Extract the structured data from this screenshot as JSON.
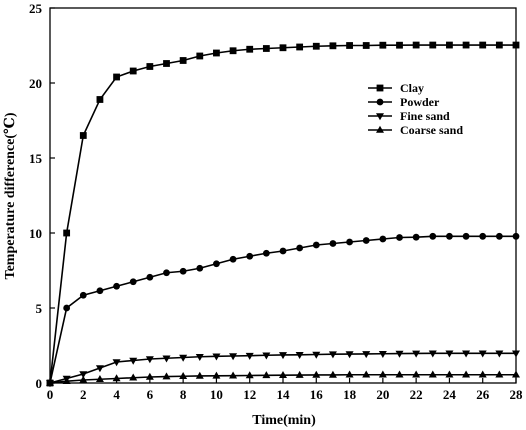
{
  "chart_data": {
    "type": "line",
    "title": "",
    "xlabel": "Time(min)",
    "ylabel": "Temperature difference(℃)",
    "xlim": [
      0,
      28
    ],
    "ylim": [
      0,
      25
    ],
    "xticks": [
      0,
      2,
      4,
      6,
      8,
      10,
      12,
      14,
      16,
      18,
      20,
      22,
      24,
      26,
      28
    ],
    "yticks": [
      0,
      5,
      10,
      15,
      20,
      25
    ],
    "grid": false,
    "legend_position": "top-right",
    "series": [
      {
        "name": "Clay",
        "marker": "square",
        "x": [
          0,
          1,
          2,
          3,
          4,
          5,
          6,
          7,
          8,
          9,
          10,
          11,
          12,
          13,
          14,
          15,
          16,
          17,
          18,
          19,
          20,
          21,
          22,
          23,
          24,
          25,
          26,
          27,
          28
        ],
        "values": [
          0,
          10.0,
          16.5,
          18.9,
          20.4,
          20.8,
          21.1,
          21.3,
          21.5,
          21.8,
          22.0,
          22.15,
          22.25,
          22.3,
          22.35,
          22.4,
          22.45,
          22.48,
          22.5,
          22.5,
          22.52,
          22.52,
          22.53,
          22.53,
          22.53,
          22.53,
          22.53,
          22.53,
          22.53
        ]
      },
      {
        "name": "Powder",
        "marker": "circle",
        "x": [
          0,
          1,
          2,
          3,
          4,
          5,
          6,
          7,
          8,
          9,
          10,
          11,
          12,
          13,
          14,
          15,
          16,
          17,
          18,
          19,
          20,
          21,
          22,
          23,
          24,
          25,
          26,
          27,
          28
        ],
        "values": [
          0,
          5.0,
          5.85,
          6.15,
          6.45,
          6.75,
          7.05,
          7.35,
          7.45,
          7.65,
          7.95,
          8.25,
          8.45,
          8.65,
          8.8,
          9.0,
          9.2,
          9.3,
          9.4,
          9.5,
          9.6,
          9.7,
          9.72,
          9.78,
          9.78,
          9.78,
          9.78,
          9.78,
          9.78
        ]
      },
      {
        "name": "Fine sand",
        "marker": "triangle-down",
        "x": [
          0,
          1,
          2,
          3,
          4,
          5,
          6,
          7,
          8,
          9,
          10,
          11,
          12,
          13,
          14,
          15,
          16,
          17,
          18,
          19,
          20,
          21,
          22,
          23,
          24,
          25,
          26,
          27,
          28
        ],
        "values": [
          0,
          0.3,
          0.6,
          1.0,
          1.4,
          1.5,
          1.6,
          1.65,
          1.7,
          1.75,
          1.78,
          1.8,
          1.82,
          1.85,
          1.87,
          1.88,
          1.9,
          1.92,
          1.93,
          1.94,
          1.95,
          1.96,
          1.97,
          1.98,
          1.98,
          1.98,
          1.98,
          1.98,
          1.98
        ]
      },
      {
        "name": "Coarse sand",
        "marker": "triangle-up",
        "x": [
          0,
          1,
          2,
          3,
          4,
          5,
          6,
          7,
          8,
          9,
          10,
          11,
          12,
          13,
          14,
          15,
          16,
          17,
          18,
          19,
          20,
          21,
          22,
          23,
          24,
          25,
          26,
          27,
          28
        ],
        "values": [
          0,
          0.12,
          0.2,
          0.25,
          0.3,
          0.35,
          0.4,
          0.43,
          0.45,
          0.47,
          0.48,
          0.49,
          0.5,
          0.51,
          0.52,
          0.53,
          0.54,
          0.54,
          0.55,
          0.55,
          0.55,
          0.55,
          0.55,
          0.55,
          0.55,
          0.55,
          0.55,
          0.55,
          0.55
        ]
      }
    ]
  }
}
